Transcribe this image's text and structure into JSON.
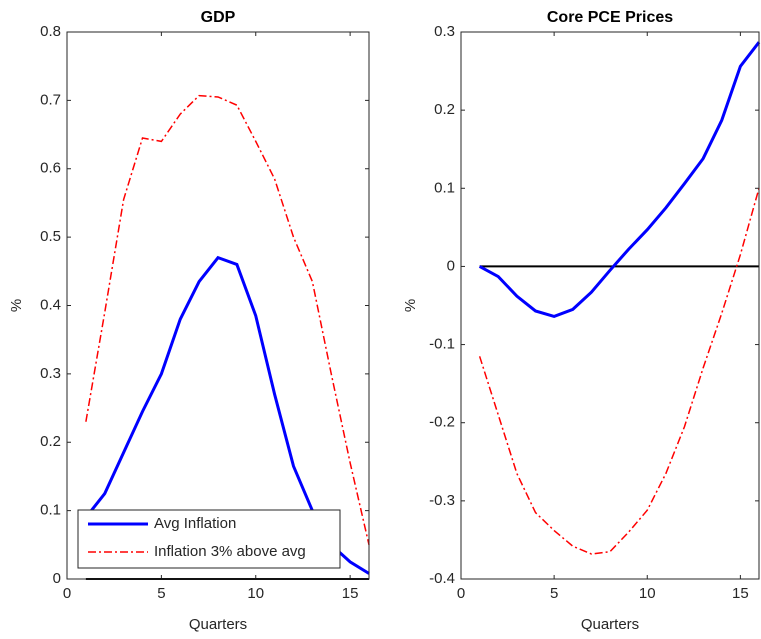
{
  "chart_data": [
    {
      "type": "line",
      "title": "GDP",
      "xlabel": "Quarters",
      "ylabel": "%",
      "x": [
        1,
        2,
        3,
        4,
        5,
        6,
        7,
        8,
        9,
        10,
        11,
        12,
        13,
        14,
        15,
        16
      ],
      "series": [
        {
          "name": "Avg Inflation",
          "color": "#0000ff",
          "style": "solid",
          "values": [
            0.09,
            0.125,
            0.185,
            0.245,
            0.3,
            0.38,
            0.435,
            0.47,
            0.46,
            0.385,
            0.27,
            0.165,
            0.1,
            0.05,
            0.025,
            0.008
          ]
        },
        {
          "name": "Inflation 3% above avg",
          "color": "#ff0000",
          "style": "dashdot",
          "values": [
            0.23,
            0.39,
            0.555,
            0.645,
            0.64,
            0.68,
            0.707,
            0.705,
            0.693,
            0.64,
            0.585,
            0.5,
            0.435,
            0.3,
            0.17,
            0.05
          ]
        }
      ],
      "reference_line": 0,
      "xlim": [
        0,
        16
      ],
      "xticks": [
        0,
        5,
        10,
        15
      ],
      "ylim": [
        0,
        0.8
      ],
      "yticks": [
        0,
        0.1,
        0.2,
        0.3,
        0.4,
        0.5,
        0.6,
        0.7,
        0.8
      ],
      "legend": "lower left"
    },
    {
      "type": "line",
      "title": "Core PCE Prices",
      "xlabel": "Quarters",
      "ylabel": "%",
      "x": [
        1,
        2,
        3,
        4,
        5,
        6,
        7,
        8,
        9,
        10,
        11,
        12,
        13,
        14,
        15,
        16
      ],
      "series": [
        {
          "color": "#0000ff",
          "style": "solid",
          "values": [
            0,
            -0.013,
            -0.038,
            -0.057,
            -0.064,
            -0.055,
            -0.033,
            -0.005,
            0.022,
            0.047,
            0.075,
            0.106,
            0.138,
            0.187,
            0.256,
            0.287
          ]
        },
        {
          "color": "#ff0000",
          "style": "dashdot",
          "values": [
            -0.115,
            -0.19,
            -0.265,
            -0.315,
            -0.338,
            -0.358,
            -0.368,
            -0.365,
            -0.34,
            -0.312,
            -0.265,
            -0.205,
            -0.13,
            -0.06,
            0.015,
            0.1
          ]
        }
      ],
      "reference_line": 0,
      "xlim": [
        0,
        16
      ],
      "xticks": [
        0,
        5,
        10,
        15
      ],
      "ylim": [
        -0.4,
        0.3
      ],
      "yticks": [
        -0.4,
        -0.3,
        -0.2,
        -0.1,
        0,
        0.1,
        0.2,
        0.3
      ]
    }
  ]
}
